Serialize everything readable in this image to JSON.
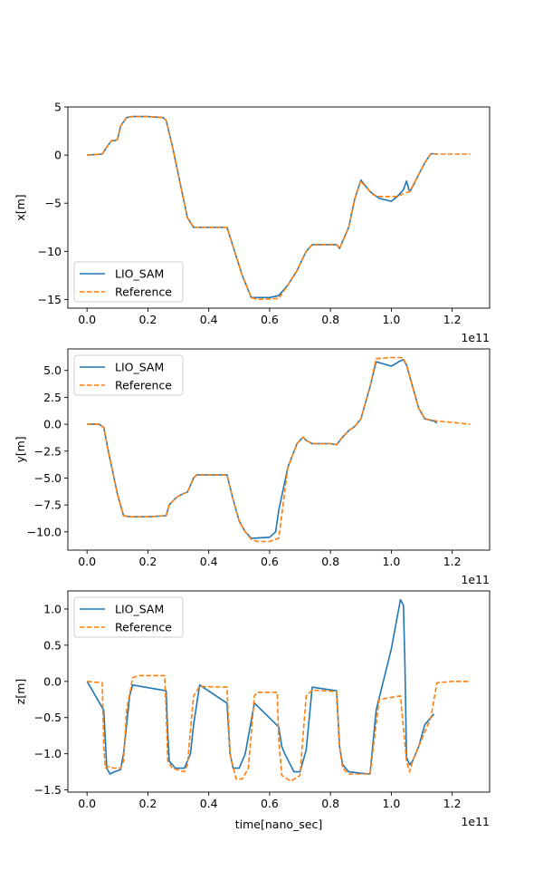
{
  "colors": {
    "lio_sam": "#1f77b4",
    "reference": "#ff7f0e",
    "axes": "#000000"
  },
  "chart_data": [
    {
      "type": "line",
      "ylabel": "x[m]",
      "xlabel": "",
      "x_offset_label": "1e11",
      "xlim": [
        -0.063,
        1.323
      ],
      "ylim": [
        -15.9,
        5.0
      ],
      "xticks": [
        0.0,
        0.2,
        0.4,
        0.6,
        0.8,
        1.0,
        1.2
      ],
      "xtick_labels": [
        "0.0",
        "0.2",
        "0.4",
        "0.6",
        "0.8",
        "1.0",
        "1.2"
      ],
      "yticks": [
        -15,
        -10,
        -5,
        0,
        5
      ],
      "ytick_labels": [
        "−15",
        "−10",
        "−5",
        "0",
        "5"
      ],
      "legend_position": "lower-left",
      "series": [
        {
          "name": "LIO_SAM",
          "style": "solid",
          "x": [
            0,
            0.05,
            0.06,
            0.08,
            0.09,
            0.1,
            0.11,
            0.13,
            0.15,
            0.2,
            0.25,
            0.26,
            0.28,
            0.3,
            0.33,
            0.35,
            0.4,
            0.46,
            0.47,
            0.49,
            0.51,
            0.54,
            0.6,
            0.63,
            0.66,
            0.69,
            0.72,
            0.74,
            0.8,
            0.82,
            0.83,
            0.86,
            0.88,
            0.9,
            0.91,
            0.93,
            0.96,
            1.0,
            1.02,
            1.04,
            1.05,
            1.06,
            1.07,
            1.09,
            1.11,
            1.13,
            1.15
          ],
          "y": [
            0.0,
            0.1,
            0.6,
            1.5,
            1.5,
            1.6,
            3.0,
            3.9,
            4.0,
            4.0,
            3.9,
            3.6,
            1.0,
            -2.0,
            -6.5,
            -7.5,
            -7.5,
            -7.5,
            -8.5,
            -10.5,
            -12.5,
            -14.8,
            -14.8,
            -14.6,
            -13.5,
            -12.0,
            -10.0,
            -9.3,
            -9.3,
            -9.3,
            -9.7,
            -7.5,
            -4.5,
            -2.6,
            -3.0,
            -3.8,
            -4.5,
            -4.8,
            -4.3,
            -3.6,
            -2.7,
            -3.8,
            -3.3,
            -2.0,
            -0.8,
            0.15,
            0.1
          ]
        },
        {
          "name": "Reference",
          "style": "dashed",
          "x": [
            0,
            0.05,
            0.06,
            0.08,
            0.09,
            0.1,
            0.11,
            0.13,
            0.15,
            0.2,
            0.25,
            0.26,
            0.28,
            0.3,
            0.33,
            0.35,
            0.4,
            0.46,
            0.47,
            0.49,
            0.51,
            0.54,
            0.56,
            0.63,
            0.66,
            0.69,
            0.72,
            0.74,
            0.8,
            0.82,
            0.83,
            0.86,
            0.88,
            0.9,
            0.91,
            0.94,
            0.96,
            0.99,
            1.02,
            1.04,
            1.06,
            1.09,
            1.11,
            1.13,
            1.15,
            1.2,
            1.26
          ],
          "y": [
            0.0,
            0.1,
            0.6,
            1.5,
            1.5,
            1.6,
            3.0,
            3.9,
            4.0,
            4.0,
            3.9,
            3.6,
            1.0,
            -2.0,
            -6.5,
            -7.5,
            -7.5,
            -7.5,
            -8.5,
            -10.5,
            -12.5,
            -14.8,
            -15.0,
            -14.9,
            -13.5,
            -12.0,
            -10.0,
            -9.3,
            -9.3,
            -9.3,
            -9.7,
            -7.5,
            -4.5,
            -2.7,
            -3.1,
            -4.1,
            -4.3,
            -4.3,
            -4.3,
            -4.0,
            -3.8,
            -2.0,
            -0.8,
            0.15,
            0.1,
            0.1,
            0.1
          ]
        }
      ]
    },
    {
      "type": "line",
      "ylabel": "y[m]",
      "xlabel": "",
      "x_offset_label": "1e11",
      "xlim": [
        -0.063,
        1.323
      ],
      "ylim": [
        -11.7,
        7.0
      ],
      "xticks": [
        0.0,
        0.2,
        0.4,
        0.6,
        0.8,
        1.0,
        1.2
      ],
      "xtick_labels": [
        "0.0",
        "0.2",
        "0.4",
        "0.6",
        "0.8",
        "1.0",
        "1.2"
      ],
      "yticks": [
        -10.0,
        -7.5,
        -5.0,
        -2.5,
        0.0,
        2.5,
        5.0
      ],
      "ytick_labels": [
        "−10.0",
        "−7.5",
        "−5.0",
        "−2.5",
        "0.0",
        "2.5",
        "5.0"
      ],
      "legend_position": "upper-left",
      "series": [
        {
          "name": "LIO_SAM",
          "style": "solid",
          "x": [
            0,
            0.04,
            0.055,
            0.07,
            0.1,
            0.12,
            0.14,
            0.2,
            0.26,
            0.27,
            0.29,
            0.3,
            0.32,
            0.33,
            0.35,
            0.36,
            0.4,
            0.46,
            0.48,
            0.5,
            0.52,
            0.54,
            0.6,
            0.62,
            0.63,
            0.66,
            0.69,
            0.71,
            0.72,
            0.74,
            0.8,
            0.82,
            0.84,
            0.86,
            0.88,
            0.9,
            0.93,
            0.95,
            1.0,
            1.03,
            1.04,
            1.05,
            1.07,
            1.09,
            1.11,
            1.14,
            1.15
          ],
          "y": [
            0.0,
            0.0,
            -0.3,
            -2.5,
            -6.5,
            -8.5,
            -8.6,
            -8.6,
            -8.5,
            -7.5,
            -6.9,
            -6.7,
            -6.4,
            -6.3,
            -5.0,
            -4.7,
            -4.7,
            -4.7,
            -7.0,
            -9.0,
            -10.0,
            -10.6,
            -10.5,
            -10.0,
            -8.0,
            -4.0,
            -1.8,
            -1.2,
            -1.5,
            -1.8,
            -1.8,
            -1.9,
            -1.2,
            -0.6,
            -0.2,
            0.5,
            3.5,
            5.8,
            5.4,
            5.9,
            6.0,
            5.5,
            3.5,
            1.5,
            0.5,
            0.3,
            0.1
          ]
        },
        {
          "name": "Reference",
          "style": "dashed",
          "x": [
            0,
            0.04,
            0.055,
            0.07,
            0.1,
            0.12,
            0.14,
            0.2,
            0.26,
            0.27,
            0.29,
            0.3,
            0.32,
            0.33,
            0.35,
            0.36,
            0.4,
            0.46,
            0.48,
            0.5,
            0.52,
            0.54,
            0.56,
            0.6,
            0.63,
            0.66,
            0.69,
            0.71,
            0.72,
            0.74,
            0.8,
            0.82,
            0.84,
            0.86,
            0.88,
            0.9,
            0.93,
            0.95,
            1.0,
            1.03,
            1.04,
            1.05,
            1.07,
            1.09,
            1.11,
            1.15,
            1.26
          ],
          "y": [
            0.0,
            0.0,
            -0.3,
            -2.5,
            -6.5,
            -8.5,
            -8.6,
            -8.6,
            -8.5,
            -7.5,
            -6.9,
            -6.7,
            -6.4,
            -6.3,
            -5.0,
            -4.7,
            -4.7,
            -4.7,
            -7.0,
            -9.0,
            -10.0,
            -10.7,
            -10.9,
            -10.9,
            -10.6,
            -4.0,
            -1.8,
            -1.2,
            -1.5,
            -1.8,
            -1.8,
            -1.9,
            -1.2,
            -0.6,
            -0.2,
            0.5,
            3.5,
            6.1,
            6.2,
            6.2,
            6.1,
            5.5,
            3.5,
            1.5,
            0.5,
            0.3,
            0.0
          ]
        }
      ]
    },
    {
      "type": "line",
      "ylabel": "z[m]",
      "xlabel": "time[nano_sec]",
      "x_offset_label": "1e11",
      "xlim": [
        -0.063,
        1.323
      ],
      "ylim": [
        -1.53,
        1.25
      ],
      "xticks": [
        0.0,
        0.2,
        0.4,
        0.6,
        0.8,
        1.0,
        1.2
      ],
      "xtick_labels": [
        "0.0",
        "0.2",
        "0.4",
        "0.6",
        "0.8",
        "1.0",
        "1.2"
      ],
      "yticks": [
        -1.5,
        -1.0,
        -0.5,
        0.0,
        0.5,
        1.0
      ],
      "ytick_labels": [
        "−1.5",
        "−1.0",
        "−0.5",
        "0.0",
        "0.5",
        "1.0"
      ],
      "legend_position": "upper-left",
      "series": [
        {
          "name": "LIO_SAM",
          "style": "solid",
          "x": [
            0,
            0.055,
            0.065,
            0.075,
            0.09,
            0.11,
            0.12,
            0.13,
            0.14,
            0.15,
            0.26,
            0.265,
            0.27,
            0.29,
            0.32,
            0.34,
            0.35,
            0.37,
            0.46,
            0.47,
            0.48,
            0.5,
            0.52,
            0.55,
            0.63,
            0.64,
            0.65,
            0.68,
            0.7,
            0.72,
            0.74,
            0.82,
            0.83,
            0.84,
            0.86,
            0.9,
            0.93,
            0.95,
            1.0,
            1.03,
            1.04,
            1.045,
            1.05,
            1.06,
            1.07,
            1.09,
            1.11,
            1.13,
            1.14
          ],
          "y": [
            0.0,
            -0.4,
            -1.2,
            -1.28,
            -1.25,
            -1.22,
            -1.0,
            -0.6,
            -0.2,
            -0.05,
            -0.13,
            -0.7,
            -1.1,
            -1.2,
            -1.2,
            -1.0,
            -0.6,
            -0.05,
            -0.3,
            -1.0,
            -1.2,
            -1.2,
            -1.0,
            -0.3,
            -0.63,
            -0.9,
            -1.0,
            -1.25,
            -1.25,
            -0.95,
            -0.08,
            -0.13,
            -0.9,
            -1.15,
            -1.25,
            -1.27,
            -1.28,
            -0.4,
            0.45,
            1.13,
            1.05,
            0.2,
            -1.05,
            -1.15,
            -1.1,
            -0.9,
            -0.6,
            -0.5,
            -0.45
          ]
        },
        {
          "name": "Reference",
          "style": "dashed",
          "x": [
            0,
            0.05,
            0.055,
            0.06,
            0.07,
            0.09,
            0.11,
            0.12,
            0.13,
            0.15,
            0.17,
            0.255,
            0.26,
            0.265,
            0.28,
            0.32,
            0.33,
            0.35,
            0.37,
            0.46,
            0.47,
            0.49,
            0.51,
            0.53,
            0.55,
            0.56,
            0.625,
            0.63,
            0.64,
            0.67,
            0.7,
            0.72,
            0.74,
            0.82,
            0.83,
            0.84,
            0.86,
            0.9,
            0.93,
            0.96,
            1.03,
            1.05,
            1.06,
            1.07,
            1.1,
            1.13,
            1.15,
            1.2,
            1.26
          ],
          "y": [
            0.0,
            -0.02,
            -0.9,
            -1.2,
            -1.18,
            -1.2,
            -1.2,
            -1.1,
            -0.4,
            0.05,
            0.08,
            0.08,
            -0.4,
            -1.1,
            -1.2,
            -1.25,
            -1.15,
            -0.2,
            -0.07,
            -0.08,
            -1.0,
            -1.35,
            -1.35,
            -1.2,
            -0.2,
            -0.15,
            -0.15,
            -0.8,
            -1.3,
            -1.38,
            -1.3,
            -0.2,
            -0.12,
            -0.14,
            -0.9,
            -1.2,
            -1.28,
            -1.28,
            -1.28,
            -0.25,
            -0.2,
            -1.1,
            -1.25,
            -1.1,
            -0.8,
            -0.5,
            -0.02,
            0.0,
            0.0
          ]
        }
      ]
    }
  ]
}
